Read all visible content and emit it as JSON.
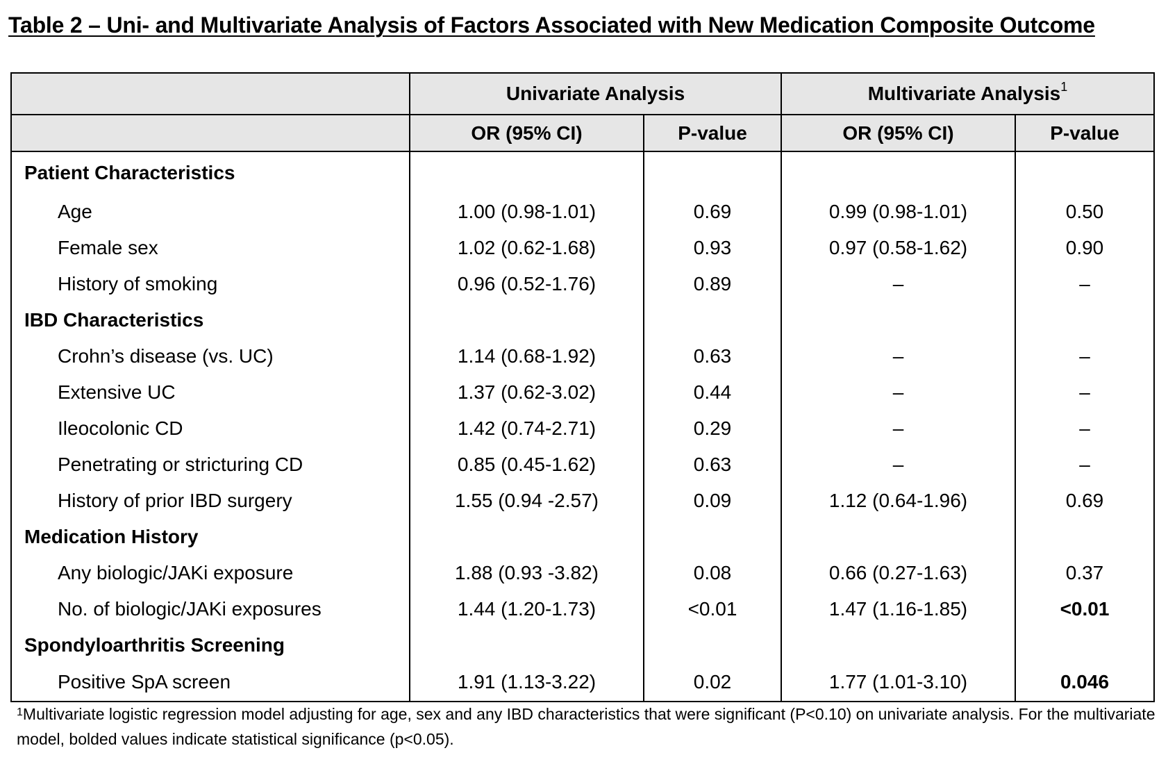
{
  "title": "Table 2 – Uni- and Multivariate Analysis of Factors Associated with New Medication Composite Outcome",
  "header": {
    "univariate": "Univariate Analysis",
    "multivariate": "Multivariate Analysis",
    "multivariate_sup": "1",
    "or_ci_1": "OR (95% CI)",
    "pvalue_1": "P-value",
    "or_ci_2": "OR (95% CI)",
    "pvalue_2": "P-value"
  },
  "rows": [
    {
      "type": "section",
      "label": "Patient Characteristics",
      "u_or": "",
      "u_p": "",
      "m_or": "",
      "m_p": ""
    },
    {
      "type": "item",
      "label": "Age",
      "u_or": "1.00 (0.98-1.01)",
      "u_p": "0.69",
      "m_or": "0.99 (0.98-1.01)",
      "m_p": "0.50"
    },
    {
      "type": "item",
      "label": "Female sex",
      "u_or": "1.02 (0.62-1.68)",
      "u_p": "0.93",
      "m_or": "0.97 (0.58-1.62)",
      "m_p": "0.90"
    },
    {
      "type": "item",
      "label": "History of smoking",
      "u_or": "0.96 (0.52-1.76)",
      "u_p": "0.89",
      "m_or": "–",
      "m_p": "–"
    },
    {
      "type": "section",
      "label": "IBD Characteristics",
      "u_or": "",
      "u_p": "",
      "m_or": "",
      "m_p": ""
    },
    {
      "type": "item",
      "label": "Crohn’s disease (vs. UC)",
      "u_or": "1.14 (0.68-1.92)",
      "u_p": "0.63",
      "m_or": "–",
      "m_p": "–"
    },
    {
      "type": "item",
      "label": "Extensive UC",
      "u_or": "1.37 (0.62-3.02)",
      "u_p": "0.44",
      "m_or": "–",
      "m_p": "–"
    },
    {
      "type": "item",
      "label": "Ileocolonic CD",
      "u_or": "1.42 (0.74-2.71)",
      "u_p": "0.29",
      "m_or": "–",
      "m_p": "–"
    },
    {
      "type": "item",
      "label": "Penetrating or stricturing CD",
      "u_or": "0.85 (0.45-1.62)",
      "u_p": "0.63",
      "m_or": "–",
      "m_p": "–"
    },
    {
      "type": "item",
      "label": "History of prior IBD surgery",
      "u_or": "1.55 (0.94 -2.57)",
      "u_p": "0.09",
      "m_or": "1.12 (0.64-1.96)",
      "m_p": "0.69"
    },
    {
      "type": "section",
      "label": "Medication History",
      "u_or": "",
      "u_p": "",
      "m_or": "",
      "m_p": ""
    },
    {
      "type": "item",
      "label": "Any biologic/JAKi exposure",
      "u_or": "1.88 (0.93 -3.82)",
      "u_p": "0.08",
      "m_or": "0.66 (0.27-1.63)",
      "m_p": "0.37"
    },
    {
      "type": "item",
      "label": "No. of biologic/JAKi exposures",
      "u_or": "1.44 (1.20-1.73)",
      "u_p": "<0.01",
      "m_or": "1.47 (1.16-1.85)",
      "m_p": "<0.01",
      "m_p_bold": true
    },
    {
      "type": "section",
      "label": "Spondyloarthritis Screening",
      "u_or": "",
      "u_p": "",
      "m_or": "",
      "m_p": ""
    },
    {
      "type": "item",
      "label": "Positive SpA screen",
      "u_or": "1.91 (1.13-3.22)",
      "u_p": "0.02",
      "m_or": "1.77 (1.01-3.10)",
      "m_p": "0.046",
      "m_p_bold": true
    }
  ],
  "footnote": {
    "sup": "1",
    "text": "Multivariate logistic regression model adjusting for age, sex and any IBD characteristics that were significant (P<0.10) on univariate analysis. For the multivariate model, bolded values indicate statistical significance (p<0.05)."
  }
}
